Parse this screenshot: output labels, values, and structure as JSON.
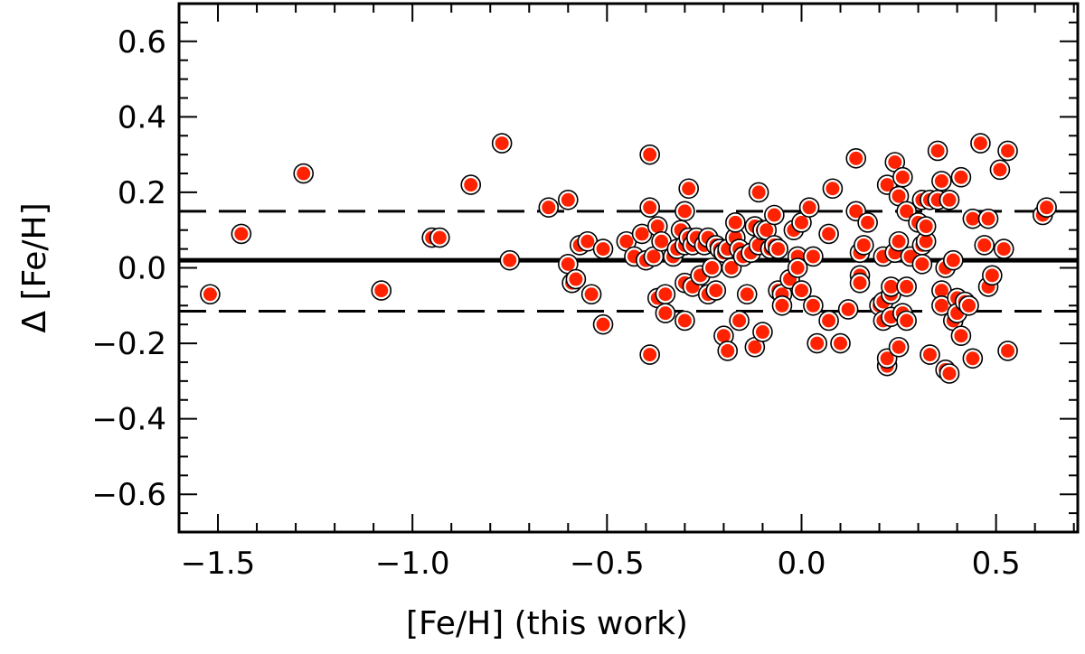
{
  "chart_data": {
    "type": "scatter",
    "title": "",
    "xlabel": "[Fe/H] (this work)",
    "ylabel": "Δ [Fe/H]",
    "xlim": [
      -1.6,
      0.71
    ],
    "ylim": [
      -0.7,
      0.7
    ],
    "xticks": [
      -1.5,
      -1.0,
      -0.5,
      0.0,
      0.5
    ],
    "xtick_labels": [
      "−1.5",
      "−1.0",
      "−0.5",
      "0.0",
      "0.5"
    ],
    "yticks": [
      -0.6,
      -0.4,
      -0.2,
      0.0,
      0.2,
      0.4,
      0.6
    ],
    "ytick_labels": [
      "−0.6",
      "−0.4",
      "−0.2",
      "0.0",
      "0.2",
      "0.4",
      "0.6"
    ],
    "grid": false,
    "marker_fill": "#ff2200",
    "marker_edge": "#000000",
    "reference_lines": [
      {
        "style": "solid",
        "y": 0.02
      },
      {
        "style": "dashed",
        "y": 0.15
      },
      {
        "style": "dashed",
        "y": -0.115
      }
    ],
    "points": [
      [
        -1.52,
        -0.07
      ],
      [
        -1.44,
        0.09
      ],
      [
        -1.28,
        0.25
      ],
      [
        -1.08,
        -0.06
      ],
      [
        -0.95,
        0.08
      ],
      [
        -0.93,
        0.08
      ],
      [
        -0.85,
        0.22
      ],
      [
        -0.77,
        0.33
      ],
      [
        -0.75,
        0.02
      ],
      [
        -0.65,
        0.16
      ],
      [
        -0.6,
        0.18
      ],
      [
        -0.6,
        0.01
      ],
      [
        -0.59,
        -0.04
      ],
      [
        -0.58,
        -0.03
      ],
      [
        -0.57,
        0.06
      ],
      [
        -0.55,
        0.07
      ],
      [
        -0.54,
        -0.07
      ],
      [
        -0.51,
        -0.15
      ],
      [
        -0.51,
        0.05
      ],
      [
        -0.45,
        0.07
      ],
      [
        -0.43,
        0.03
      ],
      [
        -0.41,
        0.09
      ],
      [
        -0.4,
        0.02
      ],
      [
        -0.39,
        0.3
      ],
      [
        -0.39,
        0.16
      ],
      [
        -0.39,
        -0.23
      ],
      [
        -0.38,
        0.03
      ],
      [
        -0.37,
        0.11
      ],
      [
        -0.37,
        -0.08
      ],
      [
        -0.36,
        0.07
      ],
      [
        -0.35,
        -0.07
      ],
      [
        -0.35,
        -0.12
      ],
      [
        -0.33,
        0.03
      ],
      [
        -0.32,
        0.05
      ],
      [
        -0.31,
        0.1
      ],
      [
        -0.3,
        0.15
      ],
      [
        -0.3,
        0.06
      ],
      [
        -0.3,
        -0.04
      ],
      [
        -0.3,
        -0.14
      ],
      [
        -0.29,
        0.21
      ],
      [
        -0.29,
        0.08
      ],
      [
        -0.28,
        0.06
      ],
      [
        -0.28,
        -0.05
      ],
      [
        -0.27,
        0.08
      ],
      [
        -0.26,
        -0.02
      ],
      [
        -0.25,
        0.06
      ],
      [
        -0.24,
        0.08
      ],
      [
        -0.24,
        -0.07
      ],
      [
        -0.23,
        0.0
      ],
      [
        -0.22,
        0.06
      ],
      [
        -0.22,
        -0.06
      ],
      [
        -0.21,
        0.05
      ],
      [
        -0.2,
        0.04
      ],
      [
        -0.2,
        -0.18
      ],
      [
        -0.19,
        0.05
      ],
      [
        -0.19,
        -0.22
      ],
      [
        -0.18,
        0.0
      ],
      [
        -0.17,
        0.08
      ],
      [
        -0.17,
        0.12
      ],
      [
        -0.16,
        0.05
      ],
      [
        -0.16,
        -0.14
      ],
      [
        -0.15,
        0.03
      ],
      [
        -0.14,
        -0.07
      ],
      [
        -0.13,
        0.04
      ],
      [
        -0.12,
        0.11
      ],
      [
        -0.12,
        -0.21
      ],
      [
        -0.11,
        0.2
      ],
      [
        -0.11,
        0.06
      ],
      [
        -0.1,
        0.1
      ],
      [
        -0.1,
        -0.17
      ],
      [
        -0.09,
        0.1
      ],
      [
        -0.08,
        0.05
      ],
      [
        -0.07,
        0.06
      ],
      [
        -0.07,
        0.14
      ],
      [
        -0.06,
        -0.06
      ],
      [
        -0.06,
        0.05
      ],
      [
        -0.05,
        -0.07
      ],
      [
        -0.05,
        -0.1
      ],
      [
        -0.03,
        -0.03
      ],
      [
        -0.02,
        0.1
      ],
      [
        -0.01,
        0.03
      ],
      [
        -0.01,
        0.0
      ],
      [
        0.0,
        0.12
      ],
      [
        0.0,
        -0.06
      ],
      [
        0.02,
        0.16
      ],
      [
        0.03,
        0.03
      ],
      [
        0.03,
        -0.1
      ],
      [
        0.04,
        -0.2
      ],
      [
        0.07,
        0.09
      ],
      [
        0.07,
        -0.14
      ],
      [
        0.08,
        0.21
      ],
      [
        0.1,
        -0.2
      ],
      [
        0.12,
        -0.11
      ],
      [
        0.14,
        0.29
      ],
      [
        0.14,
        0.15
      ],
      [
        0.15,
        -0.02
      ],
      [
        0.15,
        0.04
      ],
      [
        0.16,
        0.06
      ],
      [
        0.17,
        0.12
      ],
      [
        0.15,
        -0.04
      ],
      [
        0.2,
        -0.1
      ],
      [
        0.21,
        -0.09
      ],
      [
        0.21,
        -0.14
      ],
      [
        0.21,
        0.03
      ],
      [
        0.22,
        0.22
      ],
      [
        0.22,
        -0.26
      ],
      [
        0.22,
        -0.24
      ],
      [
        0.23,
        -0.07
      ],
      [
        0.23,
        -0.13
      ],
      [
        0.23,
        -0.05
      ],
      [
        0.24,
        0.28
      ],
      [
        0.24,
        0.04
      ],
      [
        0.25,
        0.19
      ],
      [
        0.25,
        0.07
      ],
      [
        0.25,
        -0.21
      ],
      [
        0.26,
        0.24
      ],
      [
        0.26,
        -0.12
      ],
      [
        0.27,
        -0.05
      ],
      [
        0.27,
        -0.14
      ],
      [
        0.27,
        0.15
      ],
      [
        0.28,
        0.03
      ],
      [
        0.3,
        0.12
      ],
      [
        0.31,
        0.18
      ],
      [
        0.31,
        0.06
      ],
      [
        0.31,
        0.01
      ],
      [
        0.32,
        0.07
      ],
      [
        0.32,
        0.11
      ],
      [
        0.33,
        0.18
      ],
      [
        0.33,
        -0.23
      ],
      [
        0.35,
        0.31
      ],
      [
        0.35,
        0.18
      ],
      [
        0.36,
        0.23
      ],
      [
        0.36,
        -0.06
      ],
      [
        0.36,
        -0.1
      ],
      [
        0.37,
        -0.27
      ],
      [
        0.37,
        0.0
      ],
      [
        0.38,
        -0.28
      ],
      [
        0.38,
        0.18
      ],
      [
        0.39,
        0.02
      ],
      [
        0.39,
        -0.14
      ],
      [
        0.4,
        -0.08
      ],
      [
        0.4,
        -0.12
      ],
      [
        0.41,
        0.24
      ],
      [
        0.41,
        -0.18
      ],
      [
        0.42,
        -0.09
      ],
      [
        0.43,
        -0.1
      ],
      [
        0.44,
        0.13
      ],
      [
        0.44,
        -0.24
      ],
      [
        0.46,
        0.33
      ],
      [
        0.47,
        0.06
      ],
      [
        0.48,
        0.13
      ],
      [
        0.48,
        -0.05
      ],
      [
        0.49,
        -0.02
      ],
      [
        0.51,
        0.26
      ],
      [
        0.52,
        0.05
      ],
      [
        0.53,
        0.31
      ],
      [
        0.53,
        -0.22
      ],
      [
        0.62,
        0.14
      ],
      [
        0.63,
        0.16
      ]
    ]
  }
}
